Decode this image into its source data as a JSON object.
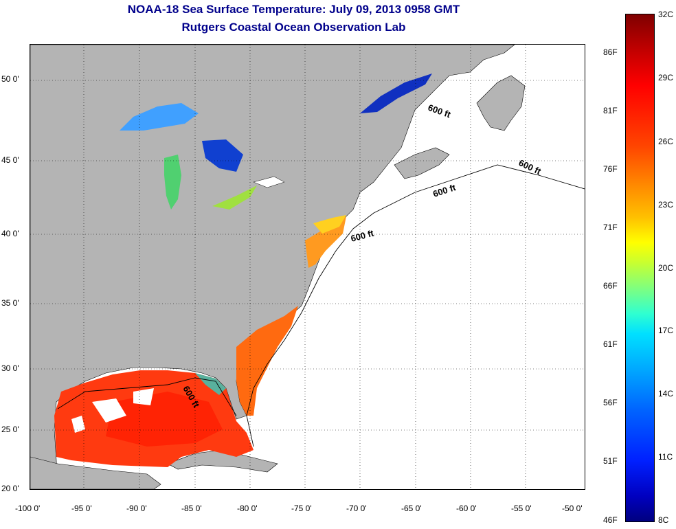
{
  "title": {
    "line1": "NOAA-18 Sea Surface Temperature:  July 09, 2013 0958 GMT",
    "line2": "Rutgers Coastal Ocean Observation Lab"
  },
  "map": {
    "lat_labels": [
      "50 0'",
      "45 0'",
      "40 0'",
      "35 0'",
      "30 0'",
      "25 0'",
      "20 0'"
    ],
    "lon_labels": [
      "-100 0'",
      "-95 0'",
      "-90 0'",
      "-85 0'",
      "-80 0'",
      "-75 0'",
      "-70 0'",
      "-65 0'",
      "-60 0'",
      "-55 0'",
      "-50 0'"
    ],
    "contour_labels": [
      "600 ft",
      "600 ft",
      "600 ft",
      "600 ft",
      "600 ft"
    ],
    "colors": {
      "land": "#b4b4b4",
      "ocean_nodata": "#ffffff"
    }
  },
  "colorbar": {
    "fahrenheit": [
      "86F",
      "81F",
      "76F",
      "71F",
      "66F",
      "61F",
      "56F",
      "51F",
      "46F"
    ],
    "celsius": [
      "32C",
      "29C",
      "26C",
      "23C",
      "20C",
      "17C",
      "14C",
      "11C",
      "8C"
    ],
    "colors": [
      "#7f0000",
      "#ff0000",
      "#ff8c00",
      "#ffff00",
      "#7fff7f",
      "#00e0ff",
      "#0064ff",
      "#0000c0",
      "#00007f"
    ]
  }
}
